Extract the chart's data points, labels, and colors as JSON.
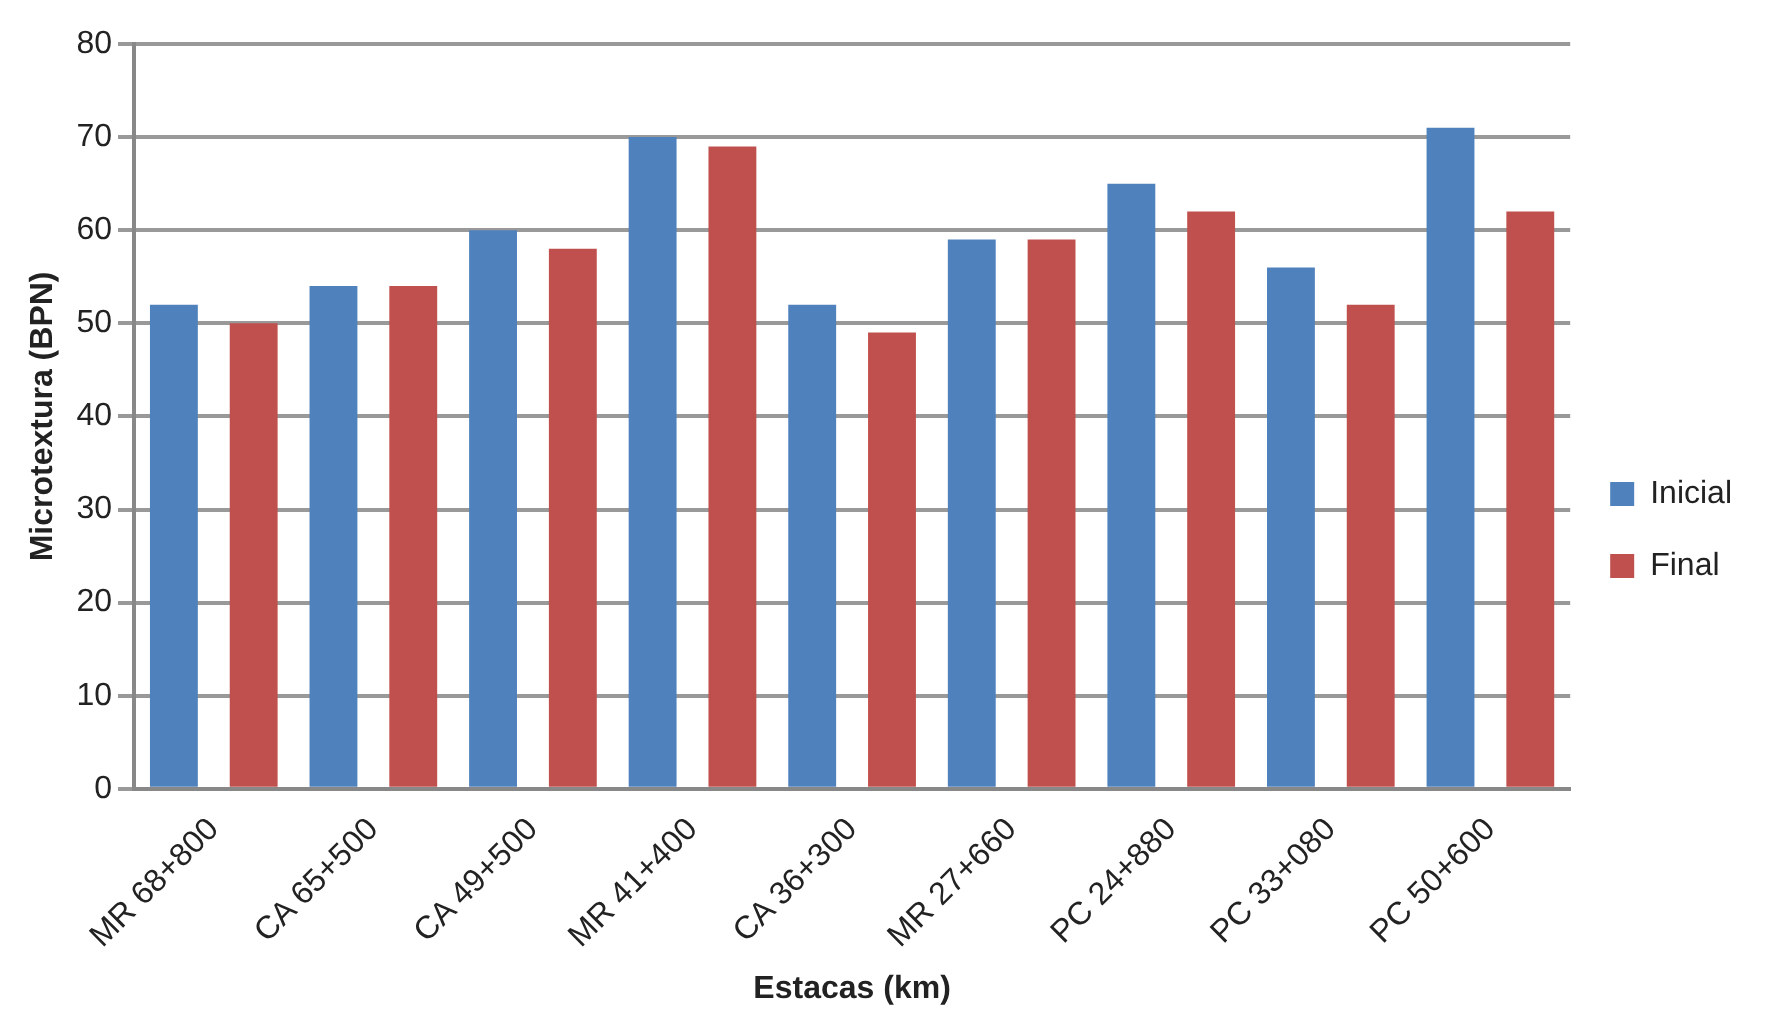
{
  "chart_data": {
    "type": "bar",
    "xlabel": "Estacas (km)",
    "ylabel": "Microtextura (BPN)",
    "categories": [
      "MR 68+800",
      "CA 65+500",
      "CA 49+500",
      "MR 41+400",
      "CA 36+300",
      "MR 27+660",
      "PC 24+880",
      "PC 33+080",
      "PC 50+600"
    ],
    "series": [
      {
        "name": "Inicial",
        "color": "#4f81bd",
        "values": [
          52,
          54,
          60,
          70,
          52,
          59,
          65,
          56,
          71
        ]
      },
      {
        "name": "Final",
        "color": "#c0504d",
        "values": [
          50,
          54,
          58,
          69,
          49,
          59,
          62,
          52,
          62
        ]
      }
    ],
    "ylim": [
      0,
      80
    ],
    "yticks": [
      0,
      10,
      20,
      30,
      40,
      50,
      60,
      70,
      80
    ],
    "grid": "y",
    "legend": "right"
  }
}
